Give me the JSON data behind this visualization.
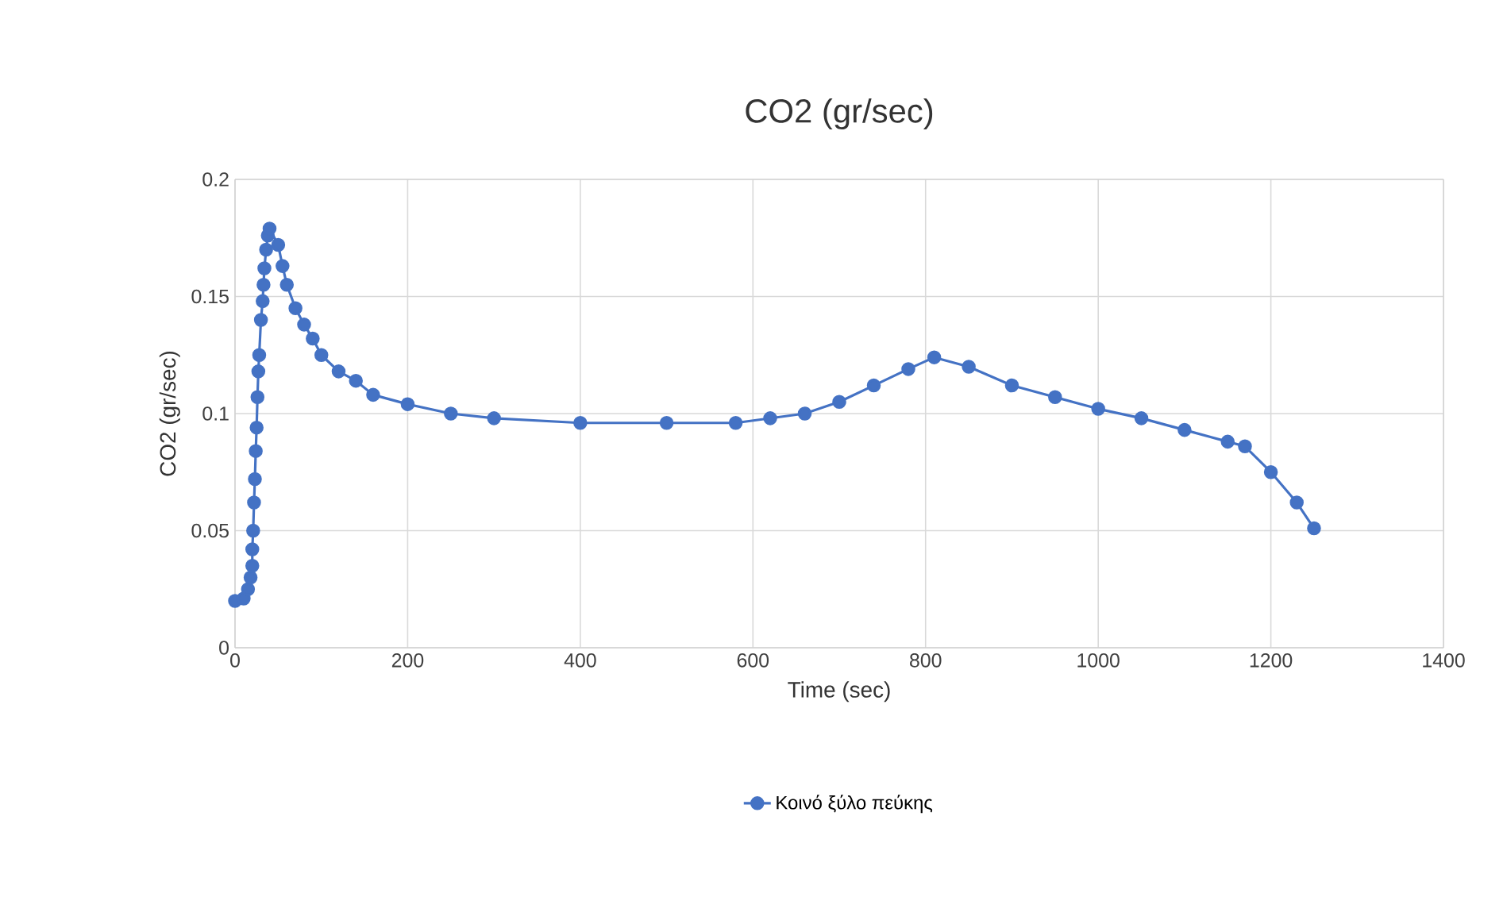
{
  "chart_data": {
    "type": "line",
    "title": "CO2 (gr/sec)",
    "xlabel": "Time (sec)",
    "ylabel": "CO2 (gr/sec)",
    "xlim": [
      0,
      1400
    ],
    "xticks": [
      0,
      200,
      400,
      600,
      800,
      1000,
      1200,
      1400
    ],
    "ylim": [
      0,
      0.2
    ],
    "yticks": [
      0,
      0.05,
      0.1,
      0.15,
      0.2
    ],
    "grid": true,
    "legend": "bottom",
    "marker": "circle",
    "line_style": "solid",
    "series": [
      {
        "name": "Κοινό ξύλο πεύκης",
        "color": "#4472c4",
        "x": [
          0,
          10,
          15,
          18,
          20,
          20,
          21,
          22,
          23,
          24,
          25,
          26,
          27,
          28,
          30,
          32,
          33,
          34,
          36,
          38,
          40,
          50,
          55,
          60,
          70,
          80,
          90,
          100,
          120,
          140,
          160,
          200,
          250,
          300,
          400,
          500,
          580,
          620,
          660,
          700,
          740,
          780,
          810,
          850,
          900,
          950,
          1000,
          1050,
          1100,
          1150,
          1170,
          1200,
          1230,
          1250
        ],
        "values": [
          0.02,
          0.021,
          0.025,
          0.03,
          0.035,
          0.042,
          0.05,
          0.062,
          0.072,
          0.084,
          0.094,
          0.107,
          0.118,
          0.125,
          0.14,
          0.148,
          0.155,
          0.162,
          0.17,
          0.176,
          0.179,
          0.172,
          0.163,
          0.155,
          0.145,
          0.138,
          0.132,
          0.125,
          0.118,
          0.114,
          0.108,
          0.104,
          0.1,
          0.098,
          0.096,
          0.096,
          0.096,
          0.098,
          0.1,
          0.105,
          0.112,
          0.119,
          0.124,
          0.12,
          0.112,
          0.107,
          0.102,
          0.098,
          0.093,
          0.088,
          0.086,
          0.075,
          0.062,
          0.051
        ]
      }
    ]
  }
}
